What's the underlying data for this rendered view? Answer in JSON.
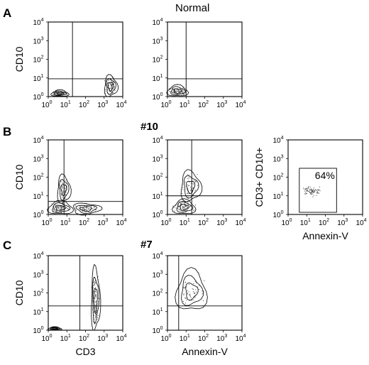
{
  "rows": [
    {
      "letter": "A",
      "title": "Normal",
      "bold": false
    },
    {
      "letter": "B",
      "title": "#10",
      "bold": true
    },
    {
      "letter": "C",
      "title": "#7",
      "bold": true
    }
  ],
  "tick_labels": {
    "x": [
      "10^0",
      "10^1",
      "10^2",
      "10^3",
      "10^4"
    ],
    "y": [
      "10^0",
      "10^1",
      "10^2",
      "10^3",
      "10^4"
    ]
  },
  "chart_data": [
    {
      "id": "A1",
      "type": "contour",
      "row": 0,
      "col": 0,
      "xscale": "log",
      "yscale": "log",
      "xlim": [
        1,
        10000
      ],
      "ylim": [
        1,
        10000
      ],
      "xlabel": "",
      "ylabel": "CD10",
      "gate": {
        "x": 20,
        "y": 9
      },
      "populations": [
        {
          "x": [
            1.5,
            12
          ],
          "y": [
            1,
            2.2
          ],
          "density": "high"
        },
        {
          "x": [
            1000,
            5000
          ],
          "y": [
            1,
            13
          ],
          "density": "high"
        }
      ]
    },
    {
      "id": "A2",
      "type": "contour",
      "row": 0,
      "col": 1,
      "xscale": "log",
      "yscale": "log",
      "xlim": [
        1,
        10000
      ],
      "ylim": [
        1,
        10000
      ],
      "xlabel": "",
      "ylabel": "",
      "gate": {
        "x": 10,
        "y": 9
      },
      "populations": [
        {
          "x": [
            1,
            12
          ],
          "y": [
            1,
            4
          ],
          "density": "high"
        }
      ]
    },
    {
      "id": "B1",
      "type": "contour",
      "row": 1,
      "col": 0,
      "xscale": "log",
      "yscale": "log",
      "xlim": [
        1,
        10000
      ],
      "ylim": [
        1,
        10000
      ],
      "xlabel": "",
      "ylabel": "CD10",
      "gate": {
        "x": 7,
        "y": 5
      },
      "populations": [
        {
          "x": [
            1,
            20
          ],
          "y": [
            1,
            5
          ],
          "density": "high"
        },
        {
          "x": [
            3,
            15
          ],
          "y": [
            4,
            120
          ],
          "density": "medium"
        },
        {
          "x": [
            20,
            600
          ],
          "y": [
            1,
            4
          ],
          "density": "medium"
        }
      ]
    },
    {
      "id": "B2",
      "type": "contour",
      "row": 1,
      "col": 1,
      "xscale": "log",
      "yscale": "log",
      "xlim": [
        1,
        10000
      ],
      "ylim": [
        1,
        10000
      ],
      "xlabel": "",
      "ylabel": "",
      "gate": {
        "x": 20,
        "y": 10
      },
      "populations": [
        {
          "x": [
            2,
            30
          ],
          "y": [
            1,
            6
          ],
          "density": "high"
        },
        {
          "x": [
            5,
            60
          ],
          "y": [
            5,
            200
          ],
          "density": "medium"
        }
      ]
    },
    {
      "id": "B3",
      "type": "scatter",
      "row": 1,
      "col": 2,
      "xscale": "log",
      "yscale": "log",
      "xlim": [
        1,
        10000
      ],
      "ylim": [
        1,
        10000
      ],
      "xlabel": "Annexin-V",
      "ylabel": "CD3+ CD10+",
      "gate_box": {
        "x": [
          4,
          400
        ],
        "y": [
          1.3,
          300
        ]
      },
      "gate_percent": "64%",
      "populations": [
        {
          "x": [
            5,
            80
          ],
          "y": [
            8,
            40
          ],
          "density": "high"
        }
      ]
    },
    {
      "id": "C1",
      "type": "contour",
      "row": 2,
      "col": 0,
      "xscale": "log",
      "yscale": "log",
      "xlim": [
        1,
        10000
      ],
      "ylim": [
        1,
        10000
      ],
      "xlabel": "CD3",
      "ylabel": "CD10",
      "gate": {
        "x": 50,
        "y": 20
      },
      "populations": [
        {
          "x": [
            1,
            5
          ],
          "y": [
            1,
            1.5
          ],
          "density": "high"
        },
        {
          "x": [
            200,
            600
          ],
          "y": [
            1,
            2000
          ],
          "density": "high"
        }
      ]
    },
    {
      "id": "C2",
      "type": "contour",
      "row": 2,
      "col": 1,
      "xscale": "log",
      "yscale": "log",
      "xlim": [
        1,
        10000
      ],
      "ylim": [
        1,
        10000
      ],
      "xlabel": "Annexin-V",
      "ylabel": "",
      "gate": {
        "x": 4,
        "y": 20
      },
      "populations": [
        {
          "x": [
            3,
            120
          ],
          "y": [
            10,
            1500
          ],
          "density": "medium"
        }
      ]
    }
  ]
}
